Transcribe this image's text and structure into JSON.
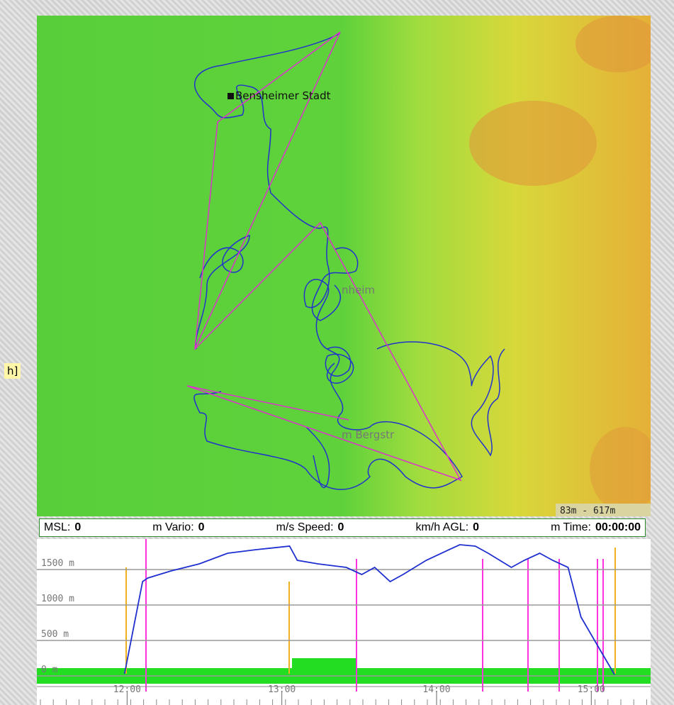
{
  "map": {
    "places": [
      "Bensheimer Stadt",
      "nheim",
      "m Bergstr"
    ],
    "scale": "83m - 617m"
  },
  "status": [
    {
      "label": "MSL:",
      "value": "0"
    },
    {
      "label": "m Vario:",
      "value": "0"
    },
    {
      "label": "m/s Speed:",
      "value": "0"
    },
    {
      "label": "km/h AGL:",
      "value": "0"
    },
    {
      "label": "m Time:",
      "value": "00:00:00"
    }
  ],
  "side": {
    "fragment": "h]"
  },
  "chart_data": {
    "type": "line",
    "x": [
      719,
      726,
      728,
      737,
      748,
      759,
      770,
      783,
      786,
      794,
      805,
      811,
      816,
      822,
      827,
      836,
      849,
      855,
      860,
      869,
      874,
      880,
      885,
      891,
      896,
      904,
      909
    ],
    "series": [
      {
        "color": "#1f2fd0",
        "values": [
          30,
          1330,
          1380,
          1480,
          1580,
          1730,
          1780,
          1830,
          1630,
          1580,
          1530,
          1430,
          1530,
          1330,
          1430,
          1630,
          1850,
          1830,
          1730,
          1530,
          1630,
          1730,
          1630,
          1530,
          830,
          330,
          20
        ]
      }
    ],
    "xlim": [
      685,
      923
    ],
    "ylim": [
      -120,
      1900
    ],
    "xticks": [
      {
        "value": 720,
        "label": "12:00"
      },
      {
        "value": 780,
        "label": "13:00"
      },
      {
        "value": 840,
        "label": "14:00"
      },
      {
        "value": 900,
        "label": "15:00"
      }
    ],
    "yticks": [
      {
        "value": 0,
        "label": "0 m"
      },
      {
        "value": 500,
        "label": "500 m"
      },
      {
        "value": 1000,
        "label": "1000 m"
      },
      {
        "value": 1500,
        "label": "1500 m"
      }
    ],
    "grid": true
  }
}
